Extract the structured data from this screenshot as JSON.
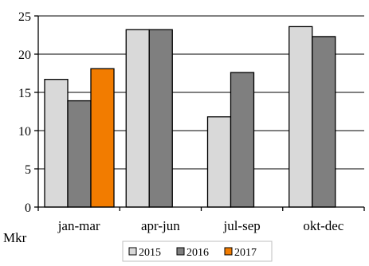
{
  "chart_data": {
    "type": "bar",
    "categories": [
      "jan-mar",
      "apr-jun",
      "jul-sep",
      "okt-dec"
    ],
    "series": [
      {
        "name": "2015",
        "values": [
          16.7,
          23.2,
          11.8,
          23.6
        ],
        "color": "#d9d9d9"
      },
      {
        "name": "2016",
        "values": [
          13.9,
          23.2,
          17.6,
          22.3
        ],
        "color": "#7f7f7f"
      },
      {
        "name": "2017",
        "values": [
          18.1,
          null,
          null,
          null
        ],
        "color": "#f27c00"
      }
    ],
    "ylim": [
      0,
      25
    ],
    "yticks": [
      0,
      5,
      10,
      15,
      20,
      25
    ],
    "unit_label": "Mkr",
    "grid": true,
    "legend_position": "bottom"
  }
}
